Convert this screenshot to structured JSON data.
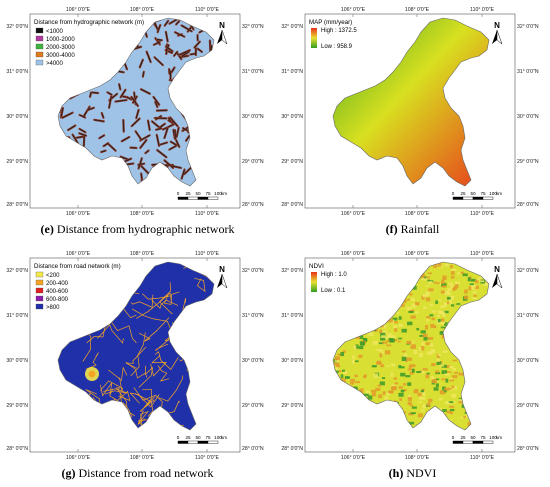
{
  "maps": [
    {
      "id": "e",
      "caption_letter": "(e)",
      "caption_text": "Distance from hydrographic network",
      "legend_title": "Distance from hydrographic network (m)",
      "legend_items": [
        {
          "label": "<1000",
          "color": "#111111"
        },
        {
          "label": "1000-2000",
          "color": "#b03aa0"
        },
        {
          "label": "2000-3000",
          "color": "#3fb43f"
        },
        {
          "label": "3000-4000",
          "color": "#e07a1f"
        },
        {
          "label": ">4000",
          "color": "#9ec3e6"
        }
      ],
      "fill_colors": [
        "#9ec3e6",
        "#8a3a2a",
        "#1a1a1a"
      ]
    },
    {
      "id": "f",
      "caption_letter": "(f)",
      "caption_text": "Rainfall",
      "legend_title": "MAP (mm/year)",
      "legend_items": [
        {
          "label": "High : 1372.5",
          "color": "#e8301a"
        },
        {
          "label": "Low : 958.9",
          "color": "#2f9e20"
        }
      ],
      "fill_colors": [
        "#2f9e20",
        "#d8e020",
        "#e8301a"
      ]
    },
    {
      "id": "g",
      "caption_letter": "(g)",
      "caption_text": "Distance from road network",
      "legend_title": "Distance from road network (m)",
      "legend_items": [
        {
          "label": "<200",
          "color": "#f5e94a"
        },
        {
          "label": "200-400",
          "color": "#f5a524"
        },
        {
          "label": "400-600",
          "color": "#e02020"
        },
        {
          "label": "600-800",
          "color": "#8a1ea8"
        },
        {
          "label": ">800",
          "color": "#2030a8"
        }
      ],
      "fill_colors": [
        "#2030a8",
        "#f5a524"
      ]
    },
    {
      "id": "h",
      "caption_letter": "(h)",
      "caption_text": "NDVI",
      "legend_title": "NDVI",
      "legend_items": [
        {
          "label": "High : 1.0",
          "color": "#e8301a"
        },
        {
          "label": "Low : 0.1",
          "color": "#2f9e20"
        }
      ],
      "fill_colors": [
        "#d9df33",
        "#e39a2a",
        "#3a9a2a"
      ]
    }
  ],
  "axes": {
    "top_labels": [
      "106° 0′0″E",
      "108° 0′0″E",
      "110° 0′0″E"
    ],
    "bottom_labels": [
      "106° 0′0″E",
      "108° 0′0″E",
      "110° 0′0″E"
    ],
    "left_labels": [
      "32° 0′0″N",
      "31° 0′0″N",
      "30° 0′0″N",
      "29° 0′0″N",
      "28° 0′0″N"
    ],
    "right_labels": [
      "32° 0′0″N",
      "31° 0′0″N",
      "30° 0′0″N",
      "29° 0′0″N",
      "28° 0′0″N"
    ]
  },
  "scale_bar": {
    "ticks": [
      "0",
      "25",
      "50",
      "75",
      "100"
    ],
    "unit": "km"
  },
  "north_label": "N"
}
